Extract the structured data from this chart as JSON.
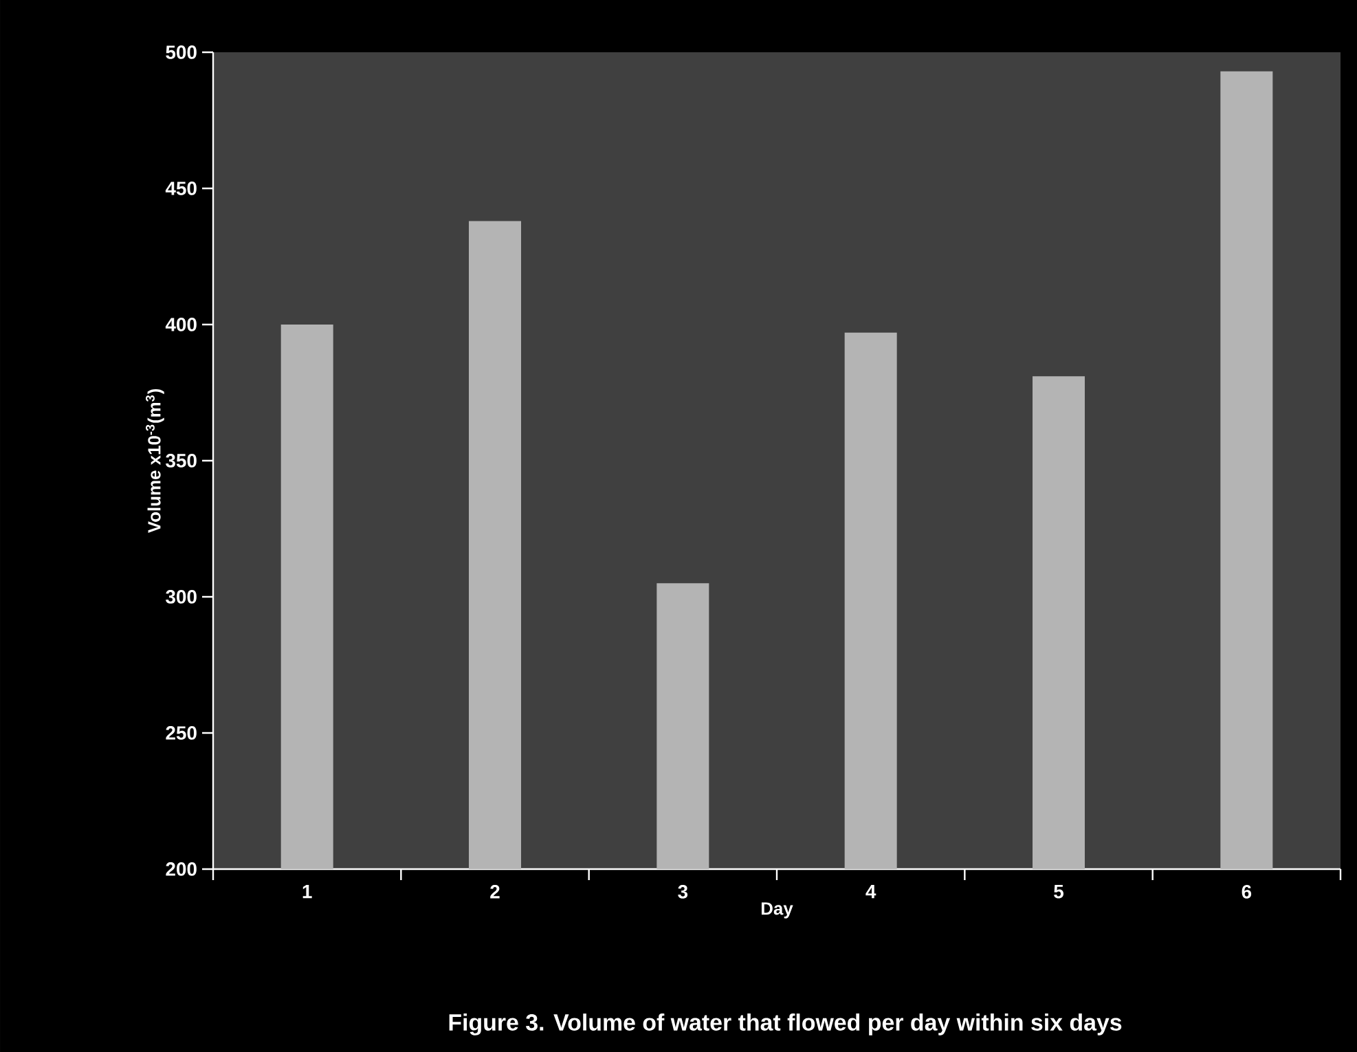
{
  "chart_data": {
    "type": "bar",
    "title": "Figure 3. Volume of water that flowed per day within six days",
    "xlabel": "Day",
    "ylabel": "Volume x10$^{-3}$(m$^{3}$)",
    "categories": [
      "1",
      "2",
      "3",
      "4",
      "5",
      "6"
    ],
    "values": [
      400,
      438,
      305,
      397,
      381,
      493
    ],
    "color": "#b4b4b4",
    "ylim": [
      200,
      500
    ],
    "yticks": [
      200,
      250,
      300,
      350,
      400,
      450,
      500
    ],
    "grid": false
  }
}
